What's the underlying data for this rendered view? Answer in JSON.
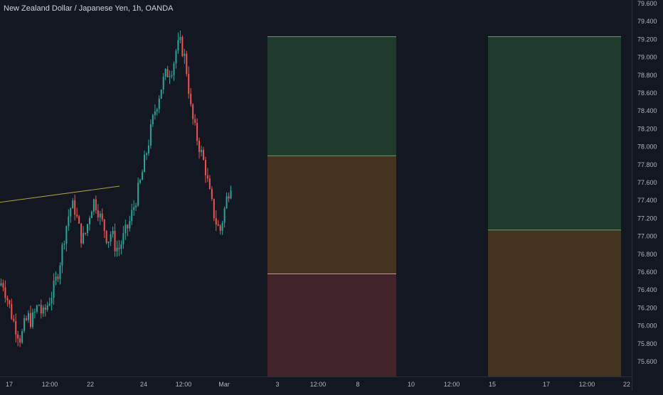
{
  "header": {
    "title": "New Zealand Dollar / Japanese Yen, 1h, OANDA"
  },
  "colors": {
    "background": "#131722",
    "up_candle": "#26a69a",
    "down_candle": "#ef5350",
    "trendline": "#a8a23a",
    "zone_green": "#1f3a2d",
    "zone_brown": "#433320",
    "zone_red": "#402429",
    "border_green": "#4caf50",
    "border_orange": "#ff9800"
  },
  "price_axis": {
    "labels": [
      "79.600",
      "79.400",
      "79.200",
      "79.000",
      "78.800",
      "78.600",
      "78.400",
      "78.200",
      "78.000",
      "77.800",
      "77.600",
      "77.400",
      "77.200",
      "77.000",
      "76.800",
      "76.600",
      "76.400",
      "76.200",
      "76.000",
      "75.800",
      "75.600"
    ]
  },
  "time_axis": {
    "labels": [
      "17",
      "12:00",
      "22",
      "24",
      "12:00",
      "Mar",
      "3",
      "12:00",
      "8",
      "10",
      "12:00",
      "15",
      "17",
      "12:00",
      "22"
    ]
  },
  "chart_data": {
    "type": "candlestick",
    "symbol": "New Zealand Dollar / Japanese Yen",
    "interval": "1h",
    "source": "OANDA",
    "ylim": [
      75.5,
      79.65
    ],
    "price_path": [
      76.45,
      76.5,
      76.35,
      76.2,
      76.05,
      75.95,
      75.85,
      76.0,
      76.1,
      76.05,
      76.15,
      76.25,
      76.1,
      76.2,
      76.3,
      76.4,
      76.55,
      76.75,
      77.0,
      77.2,
      77.35,
      77.3,
      77.1,
      76.95,
      77.05,
      77.25,
      77.4,
      77.35,
      77.2,
      77.1,
      76.95,
      77.05,
      76.9,
      76.85,
      76.95,
      77.05,
      77.15,
      77.3,
      77.45,
      77.6,
      77.8,
      78.0,
      78.2,
      78.4,
      78.55,
      78.7,
      78.8,
      78.85,
      78.9,
      79.1,
      79.15,
      79.05,
      78.8,
      78.4,
      78.2,
      78.05,
      77.9,
      77.75,
      77.5,
      77.3,
      77.15,
      77.05,
      77.25,
      77.45,
      77.6
    ],
    "trendline": {
      "from": 77.38,
      "to": 77.56
    },
    "position_zones": [
      {
        "name": "position-1",
        "target_top": 79.23,
        "entry_top": 77.9,
        "entry_bottom": 76.58,
        "stop_bottom": 75.6
      },
      {
        "name": "position-2",
        "target_top": 79.23,
        "entry_top": 77.07,
        "entry_bottom": 75.6
      }
    ]
  }
}
